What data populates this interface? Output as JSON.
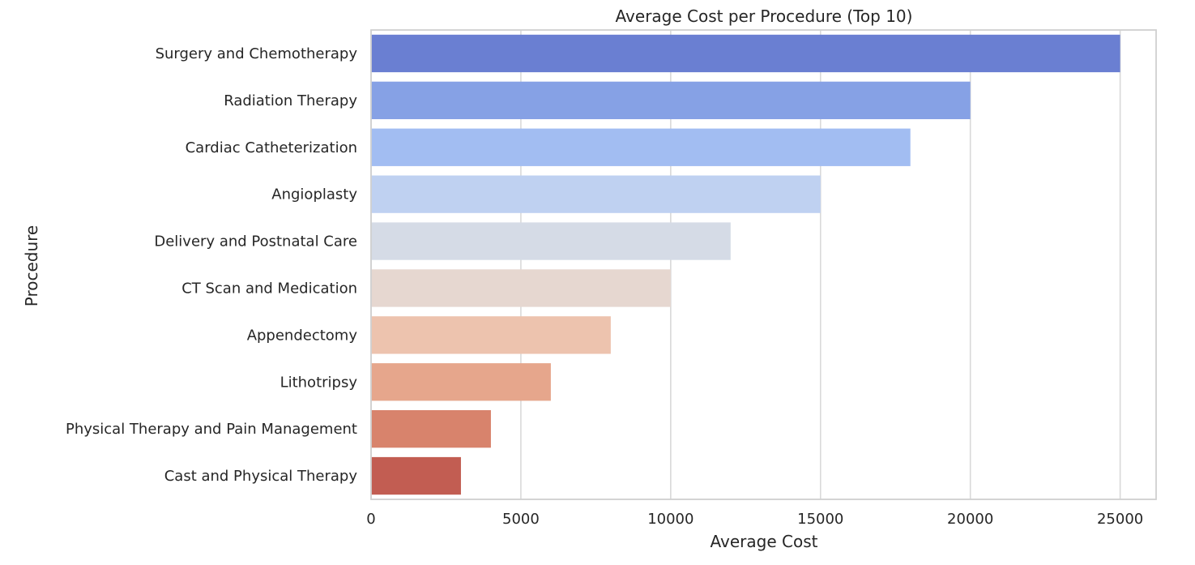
{
  "chart_data": {
    "type": "bar",
    "orientation": "horizontal",
    "title": "Average Cost per Procedure (Top 10)",
    "xlabel": "Average Cost",
    "ylabel": "Procedure",
    "xlim": [
      0,
      26200
    ],
    "xticks": [
      0,
      5000,
      10000,
      15000,
      20000,
      25000
    ],
    "grid": "vertical",
    "categories": [
      "Surgery and Chemotherapy",
      "Radiation Therapy",
      "Cardiac Catheterization",
      "Angioplasty",
      "Delivery and Postnatal Care",
      "CT Scan and Medication",
      "Appendectomy",
      "Lithotripsy",
      "Physical Therapy and Pain Management",
      "Cast and Physical Therapy"
    ],
    "values": [
      25000,
      20000,
      18000,
      15000,
      12000,
      10000,
      8000,
      6000,
      4000,
      3000
    ],
    "colors": [
      "#6a7fd2",
      "#86a1e5",
      "#a2bdf2",
      "#bfd1f1",
      "#d5dbe6",
      "#e6d7d0",
      "#edc3ae",
      "#e6a68c",
      "#d8836c",
      "#c25d52"
    ]
  }
}
